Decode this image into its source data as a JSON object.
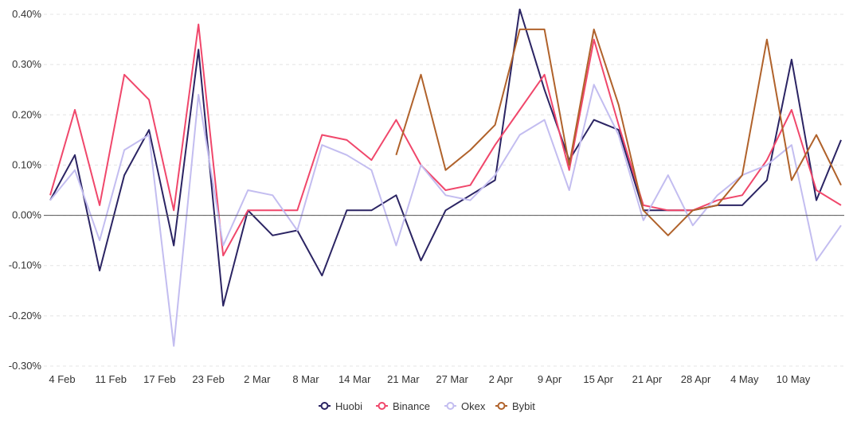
{
  "chart_data": {
    "type": "line",
    "title": "",
    "xlabel": "",
    "ylabel": "",
    "ylim": [
      -0.003,
      0.004
    ],
    "y_ticks": [
      {
        "value": 0.004,
        "label": "0.40%"
      },
      {
        "value": 0.003,
        "label": "0.30%"
      },
      {
        "value": 0.002,
        "label": "0.20%"
      },
      {
        "value": 0.001,
        "label": "0.10%"
      },
      {
        "value": 0.0,
        "label": "0.00%"
      },
      {
        "value": -0.001,
        "label": "-0.10%"
      },
      {
        "value": -0.002,
        "label": "-0.20%"
      },
      {
        "value": -0.003,
        "label": "-0.30%"
      }
    ],
    "x_ticks": [
      "4 Feb",
      "11 Feb",
      "17 Feb",
      "23 Feb",
      "2 Mar",
      "8 Mar",
      "14 Mar",
      "21 Mar",
      "27 Mar",
      "2 Apr",
      "9 Apr",
      "15 Apr",
      "21 Apr",
      "28 Apr",
      "4 May",
      "10 May"
    ],
    "x": [
      "1 Feb",
      "4 Feb",
      "7 Feb",
      "11 Feb",
      "14 Feb",
      "17 Feb",
      "20 Feb",
      "23 Feb",
      "26 Feb",
      "2 Mar",
      "5 Mar",
      "8 Mar",
      "11 Mar",
      "14 Mar",
      "17 Mar",
      "21 Mar",
      "24 Mar",
      "27 Mar",
      "30 Mar",
      "2 Apr",
      "5 Apr",
      "9 Apr",
      "12 Apr",
      "15 Apr",
      "18 Apr",
      "21 Apr",
      "24 Apr",
      "28 Apr",
      "1 May",
      "4 May",
      "7 May",
      "10 May",
      "13 May"
    ],
    "grid": true,
    "legend_position": "bottom",
    "series": [
      {
        "name": "Huobi",
        "color": "#2b2463",
        "values": [
          0.0003,
          0.0012,
          -0.0011,
          0.0008,
          0.0017,
          -0.0006,
          0.0033,
          -0.0018,
          0.0001,
          -0.0004,
          -0.0003,
          -0.0012,
          0.0001,
          0.0001,
          0.0004,
          -0.0009,
          0.0001,
          0.0004,
          0.0007,
          0.0041,
          0.0025,
          0.0011,
          0.0019,
          0.0017,
          0.0001,
          0.0001,
          0.0001,
          0.0002,
          0.0002,
          0.0007,
          0.0031,
          0.0003,
          0.0015
        ]
      },
      {
        "name": "Binance",
        "color": "#f0476b",
        "values": [
          0.0004,
          0.0021,
          0.0002,
          0.0028,
          0.0023,
          0.0001,
          0.0038,
          -0.0008,
          0.0001,
          0.0001,
          0.0001,
          0.0016,
          0.0015,
          0.0011,
          0.0019,
          0.001,
          0.0005,
          0.0006,
          0.0014,
          0.0021,
          0.0028,
          0.0009,
          0.0035,
          0.0018,
          0.0002,
          0.0001,
          0.0001,
          0.0003,
          0.0004,
          0.0011,
          0.0021,
          0.0005,
          0.0002
        ]
      },
      {
        "name": "Okex",
        "color": "#c3bdf0",
        "values": [
          0.0003,
          0.0009,
          -0.0005,
          0.0013,
          0.0016,
          -0.0026,
          0.0024,
          -0.0006,
          0.0005,
          0.0004,
          -0.0003,
          0.0014,
          0.0012,
          0.0009,
          -0.0006,
          0.001,
          0.0004,
          0.0003,
          0.0008,
          0.0016,
          0.0019,
          0.0005,
          0.0026,
          0.0016,
          -0.0001,
          0.0008,
          -0.0002,
          0.0004,
          0.0008,
          0.001,
          0.0014,
          -0.0009,
          -0.0002
        ]
      },
      {
        "name": "Bybit",
        "color": "#b0622b",
        "values": [
          null,
          null,
          null,
          null,
          null,
          null,
          null,
          null,
          null,
          null,
          null,
          null,
          null,
          null,
          0.0012,
          0.0028,
          0.0009,
          0.0013,
          0.0018,
          0.0037,
          0.0037,
          0.001,
          0.0037,
          0.0022,
          0.0001,
          -0.0004,
          0.0001,
          0.0002,
          0.0008,
          0.0035,
          0.0007,
          0.0016,
          0.0006
        ]
      }
    ]
  }
}
